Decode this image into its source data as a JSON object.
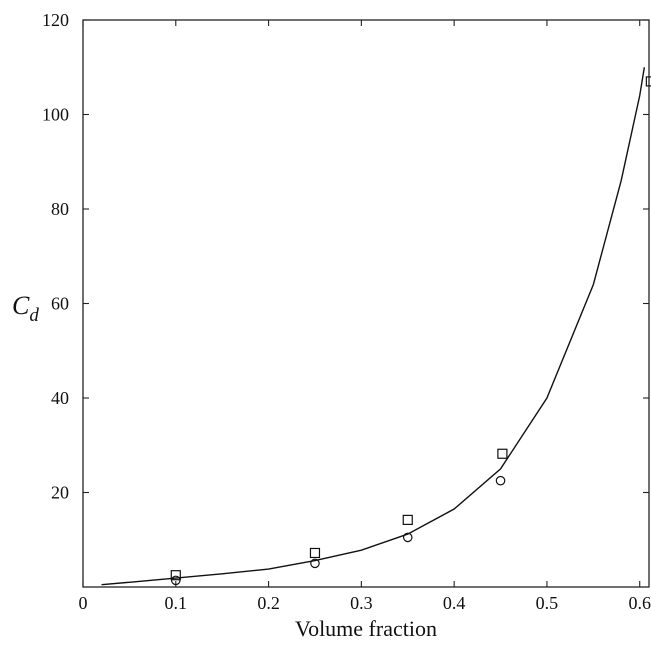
{
  "chart_data": {
    "type": "scatter",
    "title": "",
    "xlabel": "Volume fraction",
    "ylabel": {
      "main": "C",
      "sub": "d"
    },
    "xlim": [
      0,
      0.61
    ],
    "ylim": [
      0,
      120
    ],
    "xticks": [
      0,
      0.1,
      0.2,
      0.3,
      0.4,
      0.5,
      0.6
    ],
    "xtick_labels": [
      "0",
      "0.1",
      "0.2",
      "0.3",
      "0.4",
      "0.5",
      "0.6"
    ],
    "yticks": [
      20,
      40,
      60,
      80,
      100,
      120
    ],
    "ytick_labels": [
      "20",
      "40",
      "60",
      "80",
      "100",
      "120"
    ],
    "grid": false,
    "legend": "none",
    "series": [
      {
        "kind": "line",
        "x": [
          0.02,
          0.05,
          0.1,
          0.15,
          0.2,
          0.25,
          0.3,
          0.35,
          0.4,
          0.45,
          0.5,
          0.55,
          0.58,
          0.6,
          0.605
        ],
        "y": [
          0.5,
          1.0,
          1.9,
          2.8,
          3.8,
          5.6,
          7.8,
          11.2,
          16.5,
          25.0,
          40.0,
          64.0,
          86.0,
          104.0,
          110.0
        ]
      },
      {
        "kind": "markers",
        "marker": "square",
        "x": [
          0.1,
          0.25,
          0.35,
          0.452,
          0.612
        ],
        "y": [
          2.5,
          7.2,
          14.2,
          28.2,
          107.0
        ]
      },
      {
        "kind": "markers",
        "marker": "circle",
        "x": [
          0.1,
          0.25,
          0.35,
          0.45
        ],
        "y": [
          1.4,
          5.0,
          10.5,
          22.5
        ]
      }
    ]
  }
}
